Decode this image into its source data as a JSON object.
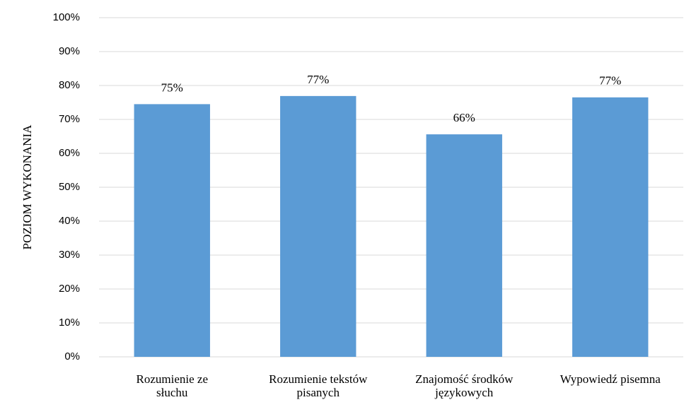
{
  "chart_data": {
    "type": "bar",
    "y_axis_label": "POZIOM WYKONANIA",
    "categories": [
      "Rozumienie ze słuchu",
      "Rozumienie tekstów pisanych",
      "Znajomość środków językowych",
      "Wypowiedź pisemna"
    ],
    "values": [
      74.5,
      76.9,
      65.6,
      76.5
    ],
    "value_labels": [
      "75%",
      "77%",
      "66%",
      "77%"
    ],
    "color": "#5b9bd5",
    "ylim": [
      0,
      100
    ],
    "yticks": [
      {
        "value": 0,
        "label": "0%"
      },
      {
        "value": 10,
        "label": "10%"
      },
      {
        "value": 20,
        "label": "20%"
      },
      {
        "value": 30,
        "label": "30%"
      },
      {
        "value": 40,
        "label": "40%"
      },
      {
        "value": 50,
        "label": "50%"
      },
      {
        "value": 60,
        "label": "60%"
      },
      {
        "value": 70,
        "label": "70%"
      },
      {
        "value": 80,
        "label": "80%"
      },
      {
        "value": 90,
        "label": "90%"
      },
      {
        "value": 100,
        "label": "100%"
      }
    ],
    "grid": true
  }
}
